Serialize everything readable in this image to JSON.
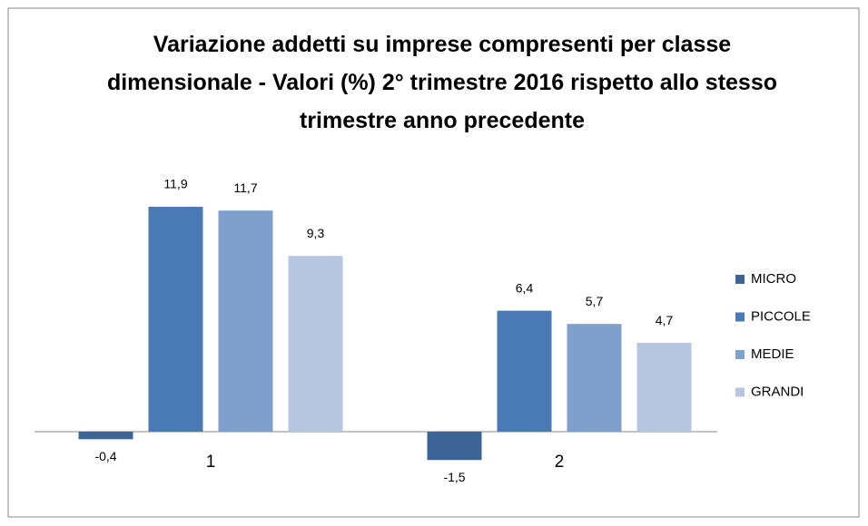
{
  "chart_data": {
    "type": "bar",
    "title": "Variazione addetti su imprese compresenti per classe dimensionale - Valori (%) 2° trimestre 2016 rispetto allo stesso trimestre anno precedente",
    "categories": [
      "1",
      "2"
    ],
    "series": [
      {
        "name": "MICRO",
        "color": "#3d6496",
        "values": [
          -0.4,
          -1.5
        ],
        "value_labels": [
          "-0,4",
          "-1,5"
        ]
      },
      {
        "name": "PICCOLE",
        "color": "#4a7ab5",
        "values": [
          11.9,
          6.4
        ],
        "value_labels": [
          "11,9",
          "6,4"
        ]
      },
      {
        "name": "MEDIE",
        "color": "#7f9fcc",
        "values": [
          11.7,
          5.7
        ],
        "value_labels": [
          "11,7",
          "5,7"
        ]
      },
      {
        "name": "GRANDI",
        "color": "#b6c5e0",
        "values": [
          9.3,
          4.7
        ],
        "value_labels": [
          "9,3",
          "4,7"
        ]
      }
    ],
    "legend": "right"
  }
}
